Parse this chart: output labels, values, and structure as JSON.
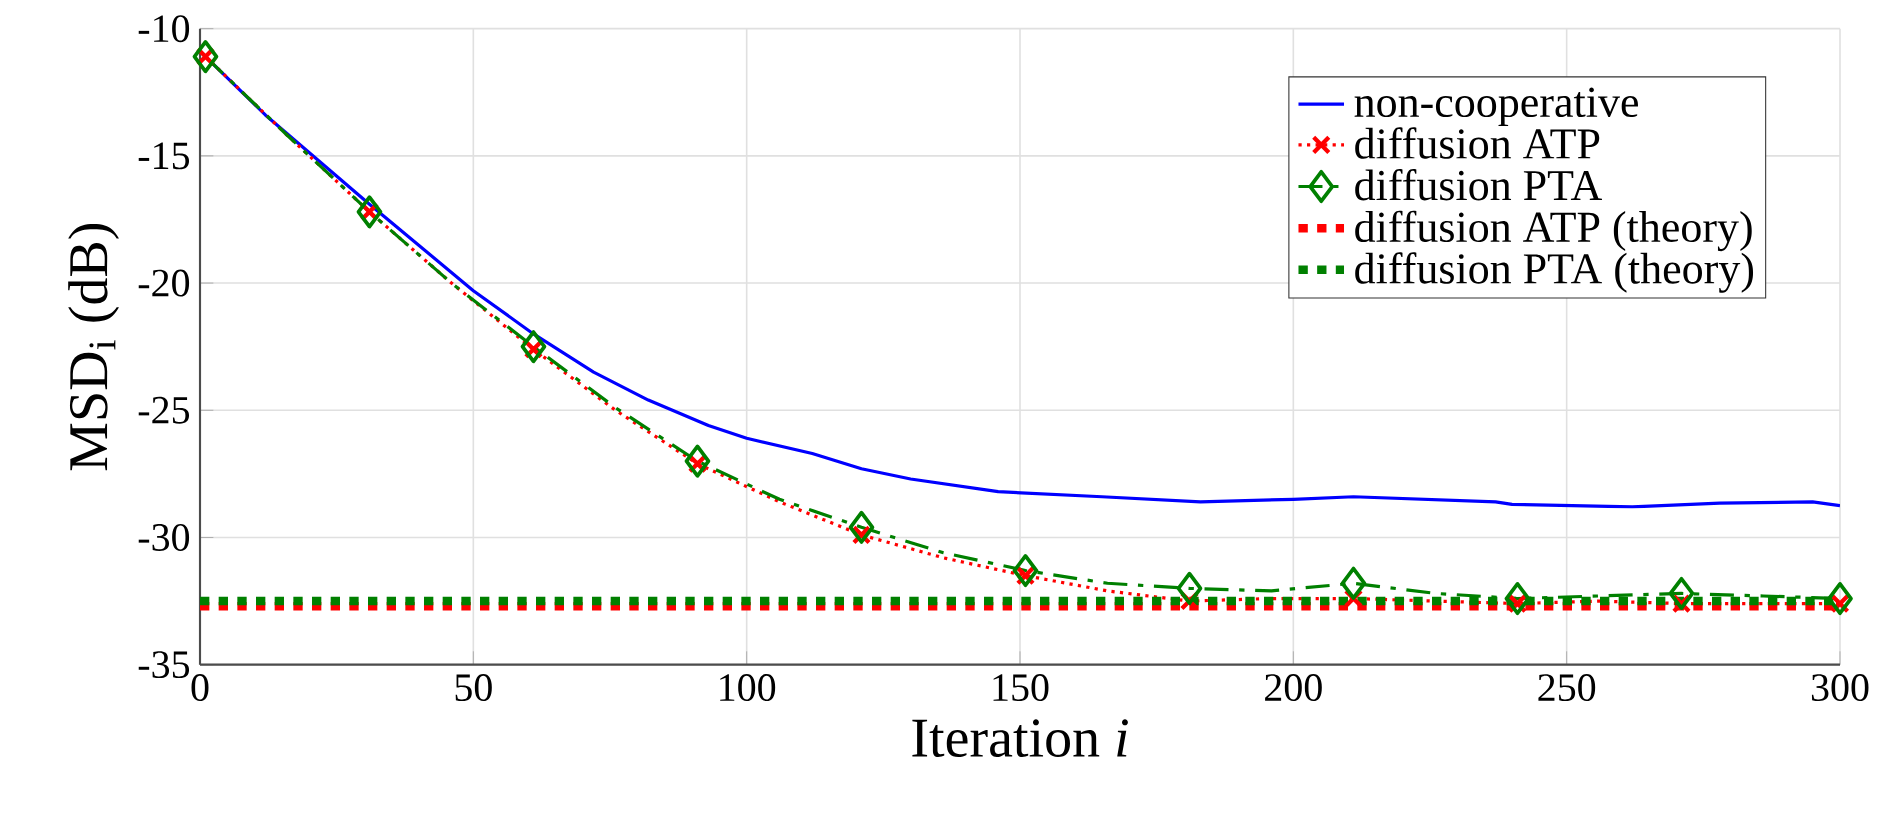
{
  "chart_data": {
    "type": "line",
    "xlabel": "Iteration *i*",
    "ylabel": "MSD$_{i}$ (dB)",
    "xlim": [
      0,
      300
    ],
    "ylim": [
      -35,
      -10
    ],
    "xticks": [
      0,
      50,
      100,
      150,
      200,
      250,
      300
    ],
    "yticks": [
      -35,
      -30,
      -25,
      -20,
      -15,
      -10
    ],
    "grid": true,
    "legend": "top right",
    "series": [
      {
        "name": "non-cooperative",
        "color": "#0000ff",
        "line_style": "solid",
        "marker": "none",
        "x": [
          1,
          12,
          31,
          50,
          61,
          72,
          82,
          93,
          100,
          112,
          121,
          130,
          146,
          165,
          183,
          200,
          211,
          237,
          240,
          262,
          278,
          295,
          300
        ],
        "values": [
          -11.1,
          -13.4,
          -16.9,
          -20.3,
          -22.0,
          -23.5,
          -24.6,
          -25.6,
          -26.1,
          -26.7,
          -27.3,
          -27.7,
          -28.2,
          -28.4,
          -28.6,
          -28.5,
          -28.4,
          -28.6,
          -28.7,
          -28.8,
          -28.65,
          -28.6,
          -28.75
        ]
      },
      {
        "name": "diffusion ATP",
        "color": "#ff0000",
        "line_style": "dotted",
        "marker": "cross",
        "x": [
          1,
          16,
          31,
          46,
          61,
          76,
          91,
          106,
          121,
          136,
          151,
          166,
          181,
          196,
          211,
          226,
          241,
          256,
          271,
          286,
          300
        ],
        "values": [
          -11.1,
          -14.2,
          -17.2,
          -20.0,
          -22.6,
          -25.0,
          -27.1,
          -28.6,
          -29.9,
          -30.8,
          -31.5,
          -32.1,
          -32.5,
          -32.4,
          -32.4,
          -32.5,
          -32.6,
          -32.5,
          -32.6,
          -32.6,
          -32.6
        ]
      },
      {
        "name": "diffusion PTA",
        "color": "#008000",
        "line_style": "dashed",
        "marker": "diamond",
        "x": [
          1,
          16,
          31,
          46,
          61,
          76,
          91,
          106,
          121,
          136,
          151,
          166,
          181,
          196,
          211,
          226,
          241,
          256,
          271,
          286,
          300
        ],
        "values": [
          -11.1,
          -14.2,
          -17.2,
          -20.0,
          -22.5,
          -24.9,
          -27.0,
          -28.5,
          -29.6,
          -30.6,
          -31.3,
          -31.8,
          -32.0,
          -32.1,
          -31.8,
          -32.2,
          -32.4,
          -32.3,
          -32.2,
          -32.3,
          -32.4
        ]
      },
      {
        "name": "diffusion ATP (theory)",
        "color": "#ff0000",
        "line_style": "dotted",
        "marker": "none",
        "x": [
          0,
          300
        ],
        "values": [
          -32.7,
          -32.7
        ]
      },
      {
        "name": "diffusion PTA (theory)",
        "color": "#008000",
        "line_style": "dotted",
        "marker": "none",
        "x": [
          0,
          300
        ],
        "values": [
          -32.5,
          -32.5
        ]
      }
    ]
  }
}
